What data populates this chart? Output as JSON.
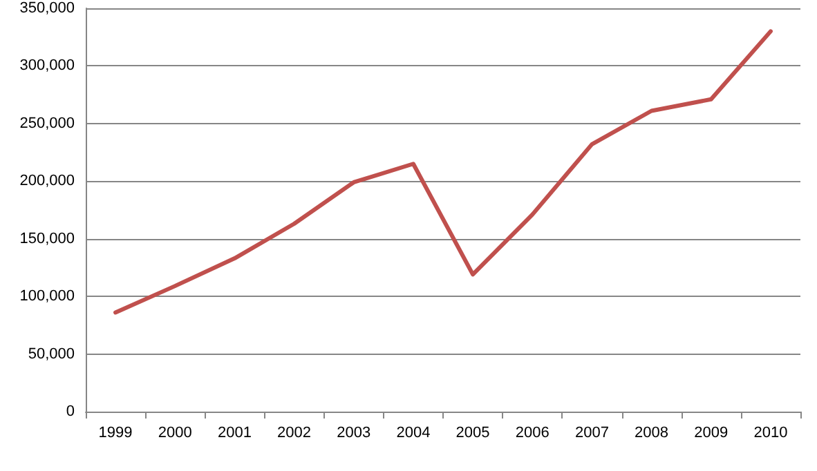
{
  "chart_data": {
    "type": "line",
    "categories": [
      "1999",
      "2000",
      "2001",
      "2002",
      "2003",
      "2004",
      "2005",
      "2006",
      "2007",
      "2008",
      "2009",
      "2010"
    ],
    "series": [
      {
        "color": "#c0504d",
        "values": [
          86000,
          109000,
          133000,
          163000,
          199000,
          215000,
          119000,
          171000,
          232000,
          261000,
          271000,
          330000
        ]
      }
    ],
    "ylim": [
      0,
      350000
    ],
    "yticks": [
      0,
      {
        "value": 50000,
        "label": "50,000"
      },
      {
        "value": 100000,
        "label": "100,000"
      },
      {
        "value": 150000,
        "label": "150,000"
      },
      {
        "value": 200000,
        "label": "200,000"
      },
      {
        "value": 250000,
        "label": "250,000"
      },
      {
        "value": 300000,
        "label": "300,000"
      },
      {
        "value": 350000,
        "label": "350,000"
      }
    ],
    "grid": "y",
    "marker": "none",
    "line_style": "solid"
  }
}
